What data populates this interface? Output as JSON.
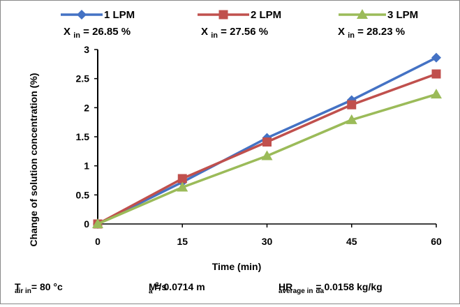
{
  "chart_data": {
    "type": "line",
    "x": [
      0,
      15,
      30,
      45,
      60
    ],
    "xlabel": "Time (min)",
    "ylabel": "Change of solution concentration (%)",
    "xticks": [
      "0",
      "15",
      "30",
      "45",
      "60"
    ],
    "yticks": [
      "0",
      "0.5",
      "1",
      "1.5",
      "2",
      "2.5",
      "3"
    ],
    "ylim": [
      0,
      3
    ],
    "grid": false,
    "legend_position": "top",
    "series": [
      {
        "name": "1 LPM",
        "sub_prefix": "X",
        "sub_index": "in",
        "sub_value": "= 26.85 %",
        "marker": "diamond",
        "color": "#4472C4",
        "values": [
          0,
          0.72,
          1.48,
          2.13,
          2.86
        ]
      },
      {
        "name": "2 LPM",
        "sub_prefix": "X",
        "sub_index": "in",
        "sub_value": "= 27.56 %",
        "marker": "square",
        "color": "#C0504D",
        "values": [
          0,
          0.78,
          1.41,
          2.05,
          2.58
        ]
      },
      {
        "name": "3 LPM",
        "sub_prefix": "X",
        "sub_index": "in",
        "sub_value": "= 28.23 %",
        "marker": "triangle",
        "color": "#9BBB59",
        "values": [
          0,
          0.63,
          1.17,
          1.79,
          2.23
        ]
      }
    ]
  },
  "footer": {
    "t_air_base": "T",
    "t_air_sub": "air in",
    "t_air_value": "= 80 °c",
    "ma_base": "M",
    "ma_sub": "a",
    "ma_value": "= 0.0714 m",
    "ma_sup": "3",
    "ma_unit": "/s",
    "hr_base": "HR",
    "hr_sub": "average in",
    "hr_value": "= 0.0158 kg/kg",
    "hr_unit_sub": "da"
  }
}
